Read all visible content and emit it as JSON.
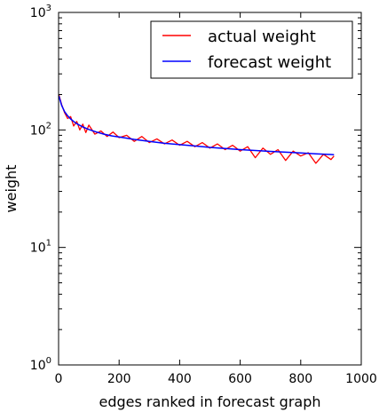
{
  "chart_data": {
    "type": "line",
    "title": "",
    "xlabel": "edges ranked in forecast graph",
    "ylabel": "weight",
    "xlim": [
      0,
      1000
    ],
    "ylim": [
      1,
      1000
    ],
    "yscale": "log",
    "x_ticks": [
      "0",
      "200",
      "400",
      "600",
      "800",
      "1000"
    ],
    "y_ticks": [
      {
        "base": "10",
        "exp": "0"
      },
      {
        "base": "10",
        "exp": "1"
      },
      {
        "base": "10",
        "exp": "2"
      },
      {
        "base": "10",
        "exp": "3"
      }
    ],
    "legend_position": "top-right",
    "grid": false,
    "series": [
      {
        "name": "actual weight",
        "color": "#ff0000",
        "x": [
          1,
          10,
          20,
          30,
          40,
          50,
          60,
          70,
          80,
          90,
          100,
          120,
          140,
          160,
          180,
          200,
          225,
          250,
          275,
          300,
          325,
          350,
          375,
          400,
          425,
          450,
          475,
          500,
          525,
          550,
          575,
          600,
          625,
          650,
          675,
          700,
          725,
          750,
          775,
          800,
          825,
          850,
          875,
          900,
          910
        ],
        "y": [
          200,
          165,
          140,
          125,
          130,
          108,
          118,
          100,
          112,
          95,
          110,
          92,
          98,
          88,
          96,
          86,
          90,
          80,
          88,
          78,
          84,
          76,
          82,
          74,
          80,
          72,
          78,
          70,
          76,
          68,
          74,
          66,
          72,
          58,
          70,
          62,
          68,
          55,
          66,
          60,
          64,
          52,
          62,
          56,
          60
        ]
      },
      {
        "name": "forecast weight",
        "color": "#0000ff",
        "x": [
          1,
          10,
          20,
          30,
          40,
          50,
          60,
          80,
          100,
          125,
          150,
          175,
          200,
          250,
          300,
          350,
          400,
          450,
          500,
          550,
          600,
          650,
          700,
          750,
          800,
          850,
          900,
          910
        ],
        "y": [
          195,
          162,
          143,
          132,
          124,
          118,
          113,
          106,
          101,
          96,
          92,
          89,
          87,
          83,
          80,
          77,
          75,
          73,
          71,
          69.5,
          68,
          66.8,
          65.7,
          64.6,
          63.6,
          62.7,
          61.8,
          61.6
        ]
      }
    ]
  }
}
